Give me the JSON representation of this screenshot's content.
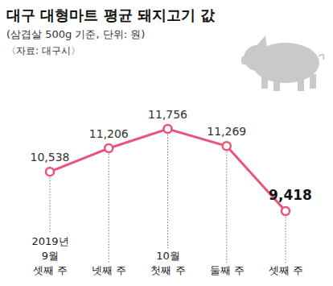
{
  "chart_data": {
    "type": "line",
    "title": "대구 대형마트 평균 돼지고기 값",
    "subtitle": "(삼겹살 500g 기준, 단위: 원)",
    "source": "〈자료: 대구시〉",
    "categories": [
      "2019년\n9월\n셋째 주",
      "넷째 주",
      "10월\n첫째 주",
      "둘째 주",
      "셋째 주"
    ],
    "values": [
      10538,
      11206,
      11756,
      11269,
      9418
    ],
    "value_labels": [
      "10,538",
      "11,206",
      "11,756",
      "11,269",
      "9,418"
    ],
    "color": "#e9557a",
    "marker": "circle",
    "data_labels": true,
    "tick_labels": "x",
    "grid": false
  }
}
